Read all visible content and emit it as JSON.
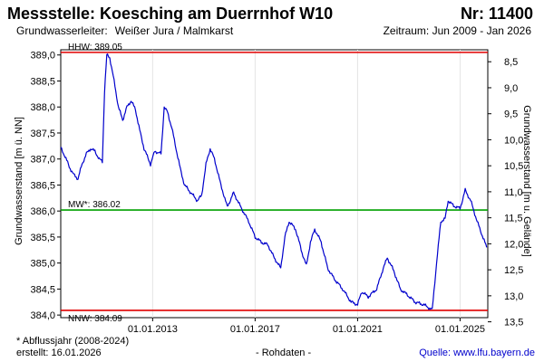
{
  "header": {
    "title": "Messstelle: Koesching am Duerrnhof W10",
    "nr": "Nr: 11400",
    "aquifer_label": "Grundwasserleiter:",
    "aquifer_value": "Weißer Jura / Malmkarst",
    "period": "Zeitraum: Jun 2009 - Jan 2026"
  },
  "chart_data": {
    "type": "line",
    "ylabel": "Grundwasserstand [m ü. NN]",
    "y2label": "Grundwasserstand [m u. Gelände]",
    "ylim": [
      383.95,
      389.1
    ],
    "y2lim": [
      8.27,
      13.42
    ],
    "ground_level": 397.37,
    "xlim": [
      "2009-06-01",
      "2026-01-31"
    ],
    "yticks": [
      384.0,
      384.5,
      385.0,
      385.5,
      386.0,
      386.5,
      387.0,
      387.5,
      388.0,
      388.5,
      389.0
    ],
    "ytick_labels": [
      "384,0",
      "384,5",
      "385,0",
      "385,5",
      "386,0",
      "386,5",
      "387,0",
      "387,5",
      "388,0",
      "388,5",
      "389,0"
    ],
    "y2ticks": [
      8.5,
      9.0,
      9.5,
      10.0,
      10.5,
      11.0,
      11.5,
      12.0,
      12.5,
      13.0,
      13.5
    ],
    "y2tick_labels": [
      "8,5",
      "9,0",
      "9,5",
      "10,0",
      "10,5",
      "11,0",
      "11,5",
      "12,0",
      "12,5",
      "13,0",
      "13,5"
    ],
    "xticks": [
      "2013-01-01",
      "2017-01-01",
      "2021-01-01",
      "2025-01-01"
    ],
    "xtick_labels": [
      "01.01.2013",
      "01.01.2017",
      "01.01.2021",
      "01.01.2025"
    ],
    "reference_lines": [
      {
        "label": "HHW: 389.05",
        "value": 389.05,
        "color": "#e00000"
      },
      {
        "label": "MW*: 386.02",
        "value": 386.02,
        "color": "#00a000"
      },
      {
        "label": "NNW: 384.09",
        "value": 384.09,
        "color": "#e00000"
      }
    ],
    "series": [
      {
        "color": "#0000cc",
        "points": [
          [
            "2009-06-01",
            387.22
          ],
          [
            "2009-08-01",
            387.05
          ],
          [
            "2009-10-01",
            386.85
          ],
          [
            "2009-12-01",
            386.7
          ],
          [
            "2010-02-01",
            386.62
          ],
          [
            "2010-04-01",
            386.9
          ],
          [
            "2010-06-01",
            387.1
          ],
          [
            "2010-08-01",
            387.2
          ],
          [
            "2010-10-01",
            387.15
          ],
          [
            "2010-12-01",
            387.0
          ],
          [
            "2011-01-15",
            386.95
          ],
          [
            "2011-02-15",
            388.3
          ],
          [
            "2011-03-20",
            389.0
          ],
          [
            "2011-05-01",
            388.95
          ],
          [
            "2011-07-01",
            388.5
          ],
          [
            "2011-09-01",
            388.0
          ],
          [
            "2011-11-01",
            387.75
          ],
          [
            "2012-01-01",
            388.0
          ],
          [
            "2012-03-01",
            388.12
          ],
          [
            "2012-05-01",
            387.95
          ],
          [
            "2012-07-01",
            387.55
          ],
          [
            "2012-09-01",
            387.2
          ],
          [
            "2012-12-01",
            386.9
          ],
          [
            "2013-02-01",
            387.15
          ],
          [
            "2013-05-01",
            387.1
          ],
          [
            "2013-06-15",
            388.0
          ],
          [
            "2013-08-01",
            387.9
          ],
          [
            "2013-10-01",
            387.6
          ],
          [
            "2013-12-01",
            387.2
          ],
          [
            "2014-02-01",
            386.8
          ],
          [
            "2014-04-01",
            386.5
          ],
          [
            "2014-07-01",
            386.35
          ],
          [
            "2014-10-01",
            386.2
          ],
          [
            "2014-12-01",
            386.3
          ],
          [
            "2015-02-01",
            386.9
          ],
          [
            "2015-04-01",
            387.2
          ],
          [
            "2015-06-01",
            387.0
          ],
          [
            "2015-09-01",
            386.5
          ],
          [
            "2015-12-01",
            386.08
          ],
          [
            "2016-03-01",
            386.35
          ],
          [
            "2016-06-01",
            386.1
          ],
          [
            "2016-10-01",
            385.8
          ],
          [
            "2017-01-01",
            385.5
          ],
          [
            "2017-04-01",
            385.4
          ],
          [
            "2017-07-01",
            385.35
          ],
          [
            "2017-10-01",
            385.1
          ],
          [
            "2018-01-01",
            384.9
          ],
          [
            "2018-03-01",
            385.5
          ],
          [
            "2018-05-01",
            385.8
          ],
          [
            "2018-08-01",
            385.65
          ],
          [
            "2018-11-01",
            385.2
          ],
          [
            "2019-01-01",
            384.95
          ],
          [
            "2019-03-01",
            385.4
          ],
          [
            "2019-05-01",
            385.65
          ],
          [
            "2019-08-01",
            385.4
          ],
          [
            "2019-11-01",
            384.9
          ],
          [
            "2020-02-01",
            384.7
          ],
          [
            "2020-06-01",
            384.5
          ],
          [
            "2020-10-01",
            384.25
          ],
          [
            "2021-01-01",
            384.2
          ],
          [
            "2021-03-01",
            384.45
          ],
          [
            "2021-06-01",
            384.35
          ],
          [
            "2021-10-01",
            384.5
          ],
          [
            "2022-01-01",
            384.9
          ],
          [
            "2022-03-01",
            385.1
          ],
          [
            "2022-06-01",
            384.85
          ],
          [
            "2022-09-01",
            384.5
          ],
          [
            "2022-12-01",
            384.4
          ],
          [
            "2023-04-01",
            384.25
          ],
          [
            "2023-08-01",
            384.2
          ],
          [
            "2023-12-01",
            384.1
          ],
          [
            "2024-02-01",
            385.0
          ],
          [
            "2024-04-01",
            385.8
          ],
          [
            "2024-06-01",
            385.85
          ],
          [
            "2024-07-15",
            386.2
          ],
          [
            "2024-10-01",
            386.1
          ],
          [
            "2025-01-01",
            386.05
          ],
          [
            "2025-03-15",
            386.4
          ],
          [
            "2025-06-01",
            386.2
          ],
          [
            "2025-09-01",
            385.8
          ],
          [
            "2026-01-15",
            385.3
          ]
        ]
      }
    ]
  },
  "footer": {
    "note": "* Abflussjahr (2008-2024)",
    "created": "erstellt:  16.01.2026",
    "data_type": "- Rohdaten -",
    "source_label": "Quelle: www.lfu.bayern.de"
  }
}
